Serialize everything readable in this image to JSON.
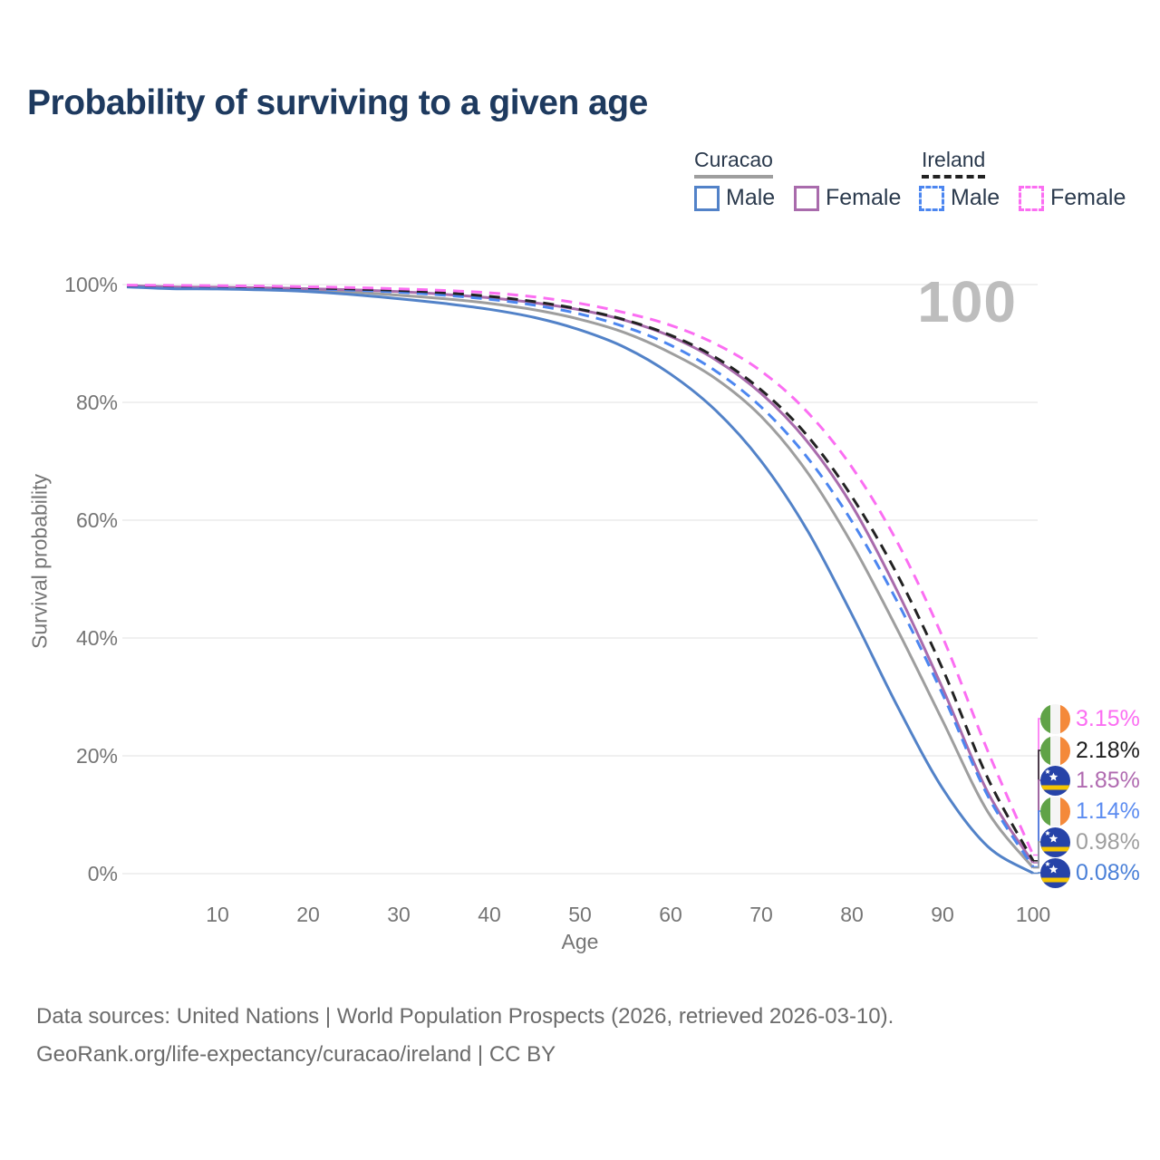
{
  "title": "Probability of surviving to a given age",
  "watermark": "100",
  "legend": {
    "groups": [
      {
        "label": "Curacao",
        "underline": "solid",
        "underline_color": "#9e9e9e",
        "items": [
          {
            "label": "Male",
            "style": "solid",
            "color": "#5282c8"
          },
          {
            "label": "Female",
            "style": "solid",
            "color": "#a96bac"
          }
        ]
      },
      {
        "label": "Ireland",
        "underline": "dashed",
        "underline_color": "#222222",
        "items": [
          {
            "label": "Male",
            "style": "dashed",
            "color": "#4c86f0"
          },
          {
            "label": "Female",
            "style": "dashed",
            "color": "#fb6ef2"
          }
        ]
      }
    ]
  },
  "axes": {
    "y_title": "Survival probability",
    "x_title": "Age"
  },
  "chart_data": {
    "type": "line",
    "title": "Probability of surviving to a given age",
    "xlabel": "Age",
    "ylabel": "Survival probability",
    "xlim": [
      0,
      105
    ],
    "ylim": [
      0,
      100
    ],
    "grid": "horizontal",
    "legend_position": "top-right",
    "x_ticks": [
      10,
      20,
      30,
      40,
      50,
      60,
      70,
      80,
      90,
      100
    ],
    "y_ticks": [
      0,
      20,
      40,
      60,
      80,
      100
    ],
    "y_tick_labels": [
      "0%",
      "20%",
      "40%",
      "60%",
      "80%",
      "100%"
    ],
    "x": [
      0,
      5,
      10,
      15,
      20,
      25,
      30,
      35,
      40,
      45,
      50,
      55,
      60,
      65,
      70,
      75,
      80,
      85,
      90,
      95,
      100
    ],
    "series": [
      {
        "id": "curacao_total",
        "name": "Curacao (both sexes)",
        "country": "Curacao",
        "sex": "Total",
        "style": "solid",
        "color": "#9e9e9e",
        "width": 3,
        "values": [
          99.7,
          99.5,
          99.4,
          99.3,
          99.1,
          98.7,
          98.2,
          97.6,
          96.8,
          95.7,
          94.1,
          91.8,
          88.4,
          84.0,
          77.6,
          68.3,
          56.0,
          41.5,
          26.0,
          10.5,
          0.98
        ],
        "end_label": "0.98%"
      },
      {
        "id": "curacao_female",
        "name": "Curacao Female",
        "country": "Curacao",
        "sex": "Female",
        "style": "solid",
        "color": "#a96bac",
        "width": 3,
        "values": [
          99.8,
          99.6,
          99.55,
          99.45,
          99.3,
          99.1,
          98.8,
          98.35,
          97.75,
          96.9,
          95.7,
          93.9,
          91.2,
          87.2,
          81.5,
          73.5,
          62.5,
          48.0,
          31.5,
          13.8,
          1.85
        ],
        "end_label": "1.85%"
      },
      {
        "id": "curacao_male",
        "name": "Curacao Male",
        "country": "Curacao",
        "sex": "Male",
        "style": "solid",
        "color": "#5282c8",
        "width": 3,
        "values": [
          99.6,
          99.3,
          99.25,
          99.1,
          98.8,
          98.3,
          97.6,
          96.8,
          95.8,
          94.4,
          92.3,
          89.3,
          84.8,
          78.6,
          70.0,
          58.5,
          44.0,
          28.5,
          14.5,
          4.6,
          0.08
        ],
        "end_label": "0.08%"
      },
      {
        "id": "ireland_male",
        "name": "Ireland Male",
        "country": "Ireland",
        "sex": "Male",
        "style": "dashed",
        "color": "#4c86f0",
        "width": 3,
        "values": [
          99.8,
          99.65,
          99.6,
          99.5,
          99.3,
          99.05,
          98.7,
          98.2,
          97.5,
          96.5,
          95.0,
          92.8,
          89.7,
          85.3,
          79.2,
          70.8,
          59.8,
          46.2,
          30.5,
          13.2,
          1.14
        ],
        "end_label": "1.14%"
      },
      {
        "id": "ireland_total",
        "name": "Ireland (both sexes)",
        "country": "Ireland",
        "sex": "Total",
        "style": "dashed",
        "color": "#222222",
        "width": 3,
        "values": [
          99.85,
          99.75,
          99.7,
          99.6,
          99.45,
          99.25,
          99.0,
          98.6,
          98.0,
          97.1,
          95.8,
          94.0,
          91.4,
          87.6,
          82.1,
          74.5,
          64.0,
          50.8,
          34.8,
          16.2,
          2.18
        ],
        "end_label": "2.18%"
      },
      {
        "id": "ireland_female",
        "name": "Ireland Female",
        "country": "Ireland",
        "sex": "Female",
        "style": "dashed",
        "color": "#fb6ef2",
        "width": 3,
        "values": [
          99.9,
          99.85,
          99.8,
          99.72,
          99.62,
          99.48,
          99.28,
          99.0,
          98.6,
          97.9,
          96.8,
          95.2,
          93.1,
          89.9,
          85.3,
          78.5,
          69.0,
          56.3,
          40.2,
          20.8,
          3.15
        ],
        "end_label": "3.15%"
      }
    ]
  },
  "endpoints": {
    "items": [
      {
        "flag": "ireland",
        "series": "ireland_female",
        "label": "3.15%",
        "color": "#fb6ef2"
      },
      {
        "flag": "ireland",
        "series": "ireland_total",
        "label": "2.18%",
        "color": "#1d1d1d"
      },
      {
        "flag": "curacao",
        "series": "curacao_female",
        "label": "1.85%",
        "color": "#b06ab0"
      },
      {
        "flag": "ireland",
        "series": "ireland_male",
        "label": "1.14%",
        "color": "#5c8cf0"
      },
      {
        "flag": "curacao",
        "series": "curacao_total",
        "label": "0.98%",
        "color": "#9e9e9e"
      },
      {
        "flag": "curacao",
        "series": "curacao_male",
        "label": "0.08%",
        "color": "#4a80d8"
      }
    ]
  },
  "footer": {
    "line1": "Data sources: United Nations | World Population Prospects (2026, retrieved 2026-03-10).",
    "line2": "GeoRank.org/life-expectancy/curacao/ireland | CC BY"
  }
}
